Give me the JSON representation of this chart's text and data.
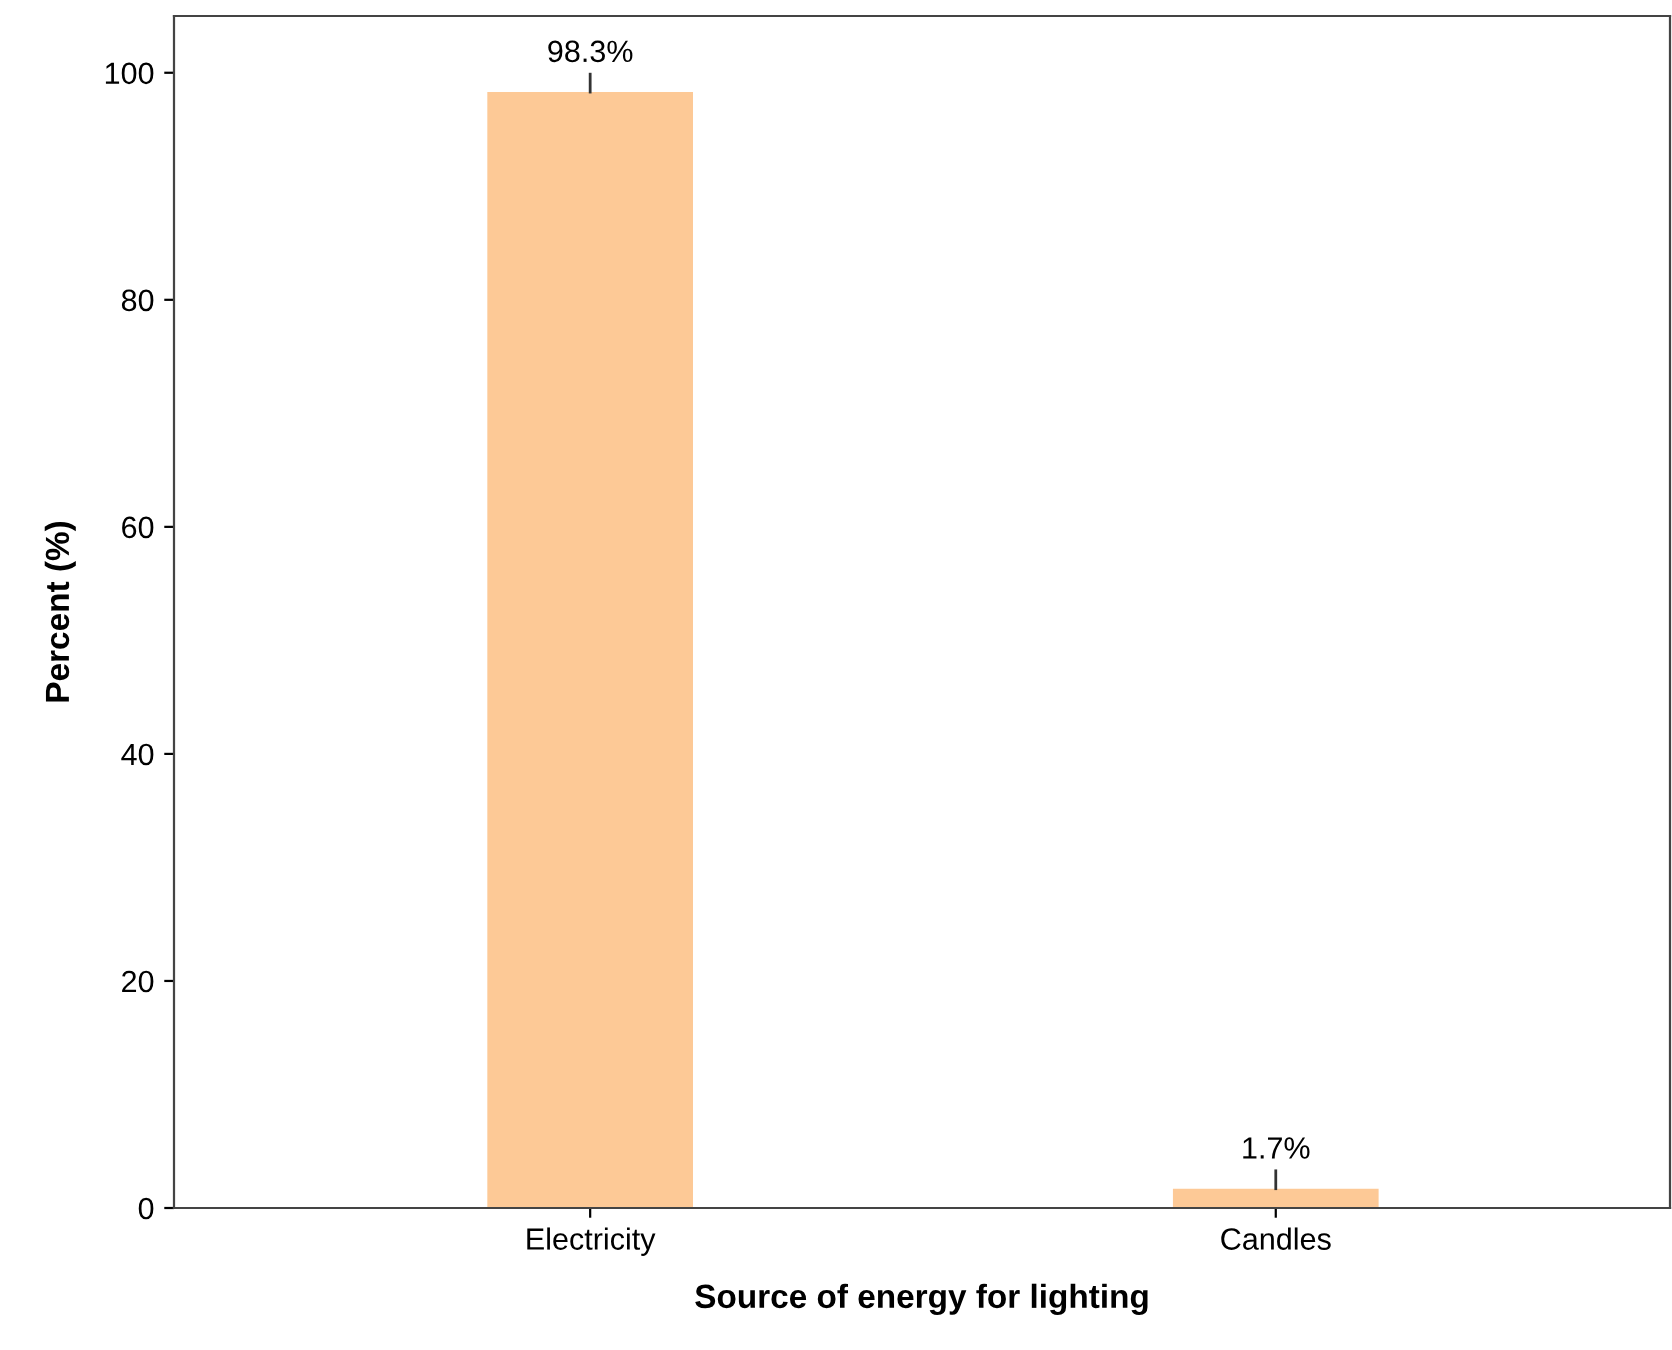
{
  "chart_data": {
    "type": "bar",
    "xlabel": "Source of energy for lighting",
    "ylabel": "Percent (%)",
    "categories": [
      "Electricity",
      "Candles"
    ],
    "values": [
      98.3,
      1.7
    ],
    "value_labels": [
      "98.3%",
      "1.7%"
    ],
    "color": "#fdc996",
    "ylim": [
      0,
      105
    ],
    "yticks": [
      0,
      20,
      40,
      60,
      80,
      100
    ],
    "grid": false,
    "legend": false
  }
}
